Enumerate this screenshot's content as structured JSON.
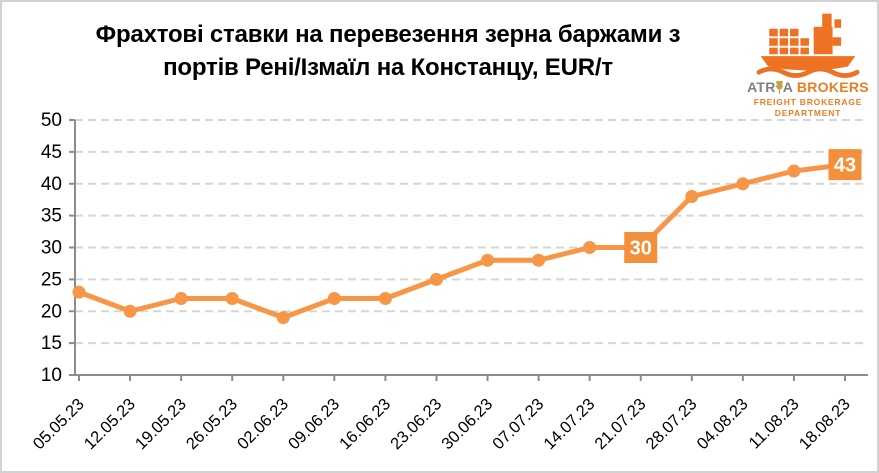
{
  "title": {
    "line1": "Фрахтові ставки на перевезення зерна баржами з",
    "line2": "портів Рені/Ізмаїл на Констанцу, EUR/т"
  },
  "logo": {
    "name_part1": "ATR",
    "name_part2": "A",
    "name_part3": "BROKERS",
    "subtitle1": "FREIGHT BROKERAGE",
    "subtitle2": "DEPARTMENT"
  },
  "colors": {
    "series_orange": "#F79646",
    "label_box_orange": "#F2903B",
    "label_text": "#FFFFFF",
    "axis_gray": "#8C8C8C",
    "grid_gray": "#D6D6D6",
    "tick_text": "#000000",
    "logo_ship_orange": "#ED7223",
    "logo_brand_gray": "#7E8083",
    "logo_brand_orange": "#E87E22",
    "wheat_gold": "#C9A13B"
  },
  "chart_data": {
    "type": "line",
    "title": "Фрахтові ставки на перевезення зерна баржами з портів Рені/Ізмаїл на Констанцу, EUR/т",
    "categories": [
      "05.05.23",
      "12.05.23",
      "19.05.23",
      "26.05.23",
      "02.06.23",
      "09.06.23",
      "16.06.23",
      "23.06.23",
      "30.06.23",
      "07.07.23",
      "14.07.23",
      "21.07.23",
      "28.07.23",
      "04.08.23",
      "11.08.23",
      "18.08.23"
    ],
    "values": [
      23,
      20,
      22,
      22,
      19,
      22,
      22,
      25,
      28,
      28,
      30,
      30,
      38,
      40,
      42,
      43
    ],
    "labeled_points": [
      {
        "index": 11,
        "label": "30"
      },
      {
        "index": 15,
        "label": "43"
      }
    ],
    "ylim": [
      10,
      50
    ],
    "ytick_step": 5,
    "xlabel": "",
    "ylabel": "",
    "grid": "horizontal-dashed",
    "legend": "none",
    "units": "EUR/t"
  }
}
